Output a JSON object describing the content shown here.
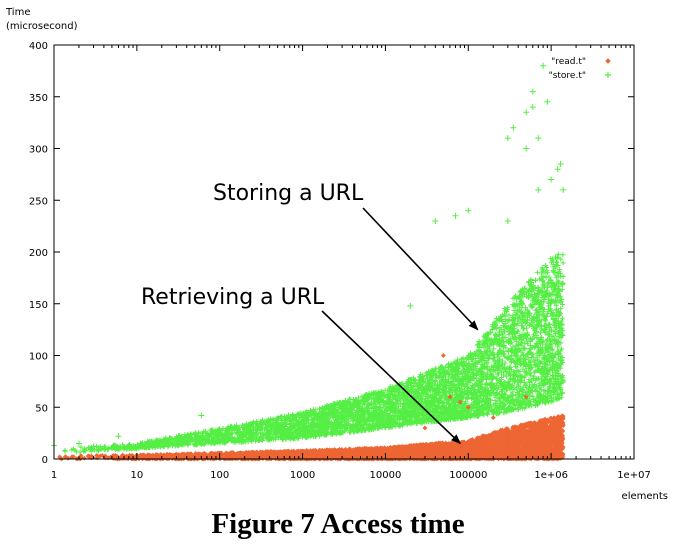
{
  "chart_data": {
    "type": "scatter",
    "xscale": "log",
    "xlim": [
      1,
      10000000
    ],
    "ylim": [
      0,
      400
    ],
    "xlabel": "elements",
    "ylabel": [
      "Time",
      "(microsecond)"
    ],
    "xticks": [
      {
        "value": 1,
        "label": "1"
      },
      {
        "value": 10,
        "label": "10"
      },
      {
        "value": 100,
        "label": "100"
      },
      {
        "value": 1000,
        "label": "1000"
      },
      {
        "value": 10000,
        "label": "10000"
      },
      {
        "value": 100000,
        "label": "100000"
      },
      {
        "value": 1000000,
        "label": "1e+06"
      },
      {
        "value": 10000000,
        "label": "1e+07"
      }
    ],
    "yticks": [
      {
        "value": 0,
        "label": "0"
      },
      {
        "value": 50,
        "label": "50"
      },
      {
        "value": 100,
        "label": "100"
      },
      {
        "value": 150,
        "label": "150"
      },
      {
        "value": 200,
        "label": "200"
      },
      {
        "value": 250,
        "label": "250"
      },
      {
        "value": 300,
        "label": "300"
      },
      {
        "value": 350,
        "label": "350"
      },
      {
        "value": 400,
        "label": "400"
      }
    ],
    "legend_position": "top-right",
    "series": [
      {
        "name": "\"read.t\"",
        "marker": "diamond",
        "color": "#ee6633",
        "x_range": [
          1,
          1400000
        ],
        "band": [
          {
            "x": 1,
            "low": 0,
            "high": 3
          },
          {
            "x": 10,
            "low": 0,
            "high": 4
          },
          {
            "x": 100,
            "low": 0,
            "high": 6
          },
          {
            "x": 1000,
            "low": 0,
            "high": 8
          },
          {
            "x": 10000,
            "low": 0,
            "high": 11
          },
          {
            "x": 100000,
            "low": 0,
            "high": 18
          },
          {
            "x": 300000,
            "low": 0,
            "high": 30
          },
          {
            "x": 1000000,
            "low": 0,
            "high": 40
          },
          {
            "x": 1400000,
            "low": 0,
            "high": 42
          }
        ],
        "outliers": [
          {
            "x": 100000,
            "y": 50
          },
          {
            "x": 80000,
            "y": 55
          },
          {
            "x": 60000,
            "y": 60
          },
          {
            "x": 50000,
            "y": 100
          },
          {
            "x": 500000,
            "y": 60
          },
          {
            "x": 200000,
            "y": 40
          },
          {
            "x": 30000,
            "y": 30
          }
        ]
      },
      {
        "name": "\"store.t\"",
        "marker": "plus",
        "color": "#55ee44",
        "x_range": [
          1,
          1400000
        ],
        "band": [
          {
            "x": 1,
            "low": 5,
            "high": 10
          },
          {
            "x": 10,
            "low": 10,
            "high": 15
          },
          {
            "x": 100,
            "low": 15,
            "high": 30
          },
          {
            "x": 1000,
            "low": 20,
            "high": 45
          },
          {
            "x": 10000,
            "low": 30,
            "high": 68
          },
          {
            "x": 100000,
            "low": 40,
            "high": 100
          },
          {
            "x": 300000,
            "low": 45,
            "high": 150
          },
          {
            "x": 1000000,
            "low": 55,
            "high": 195
          },
          {
            "x": 1400000,
            "low": 60,
            "high": 200
          }
        ],
        "outliers": [
          {
            "x": 1,
            "y": 13
          },
          {
            "x": 2,
            "y": 15
          },
          {
            "x": 3,
            "y": 12
          },
          {
            "x": 6,
            "y": 22
          },
          {
            "x": 60,
            "y": 42
          },
          {
            "x": 20000,
            "y": 148
          },
          {
            "x": 40000,
            "y": 230
          },
          {
            "x": 70000,
            "y": 235
          },
          {
            "x": 100000,
            "y": 240
          },
          {
            "x": 300000,
            "y": 230
          },
          {
            "x": 300000,
            "y": 310
          },
          {
            "x": 350000,
            "y": 320
          },
          {
            "x": 500000,
            "y": 300
          },
          {
            "x": 500000,
            "y": 335
          },
          {
            "x": 600000,
            "y": 355
          },
          {
            "x": 600000,
            "y": 340
          },
          {
            "x": 700000,
            "y": 310
          },
          {
            "x": 700000,
            "y": 260
          },
          {
            "x": 800000,
            "y": 380
          },
          {
            "x": 900000,
            "y": 345
          },
          {
            "x": 1000000,
            "y": 270
          },
          {
            "x": 1200000,
            "y": 280
          },
          {
            "x": 1300000,
            "y": 285
          },
          {
            "x": 1400000,
            "y": 260
          }
        ]
      }
    ],
    "annotations": [
      {
        "text": "Storing a URL",
        "tip": {
          "x": 130000,
          "y": 125
        }
      },
      {
        "text": "Retrieving a URL",
        "tip": {
          "x": 80000,
          "y": 15
        }
      }
    ]
  },
  "caption": "Figure 7 Access time"
}
